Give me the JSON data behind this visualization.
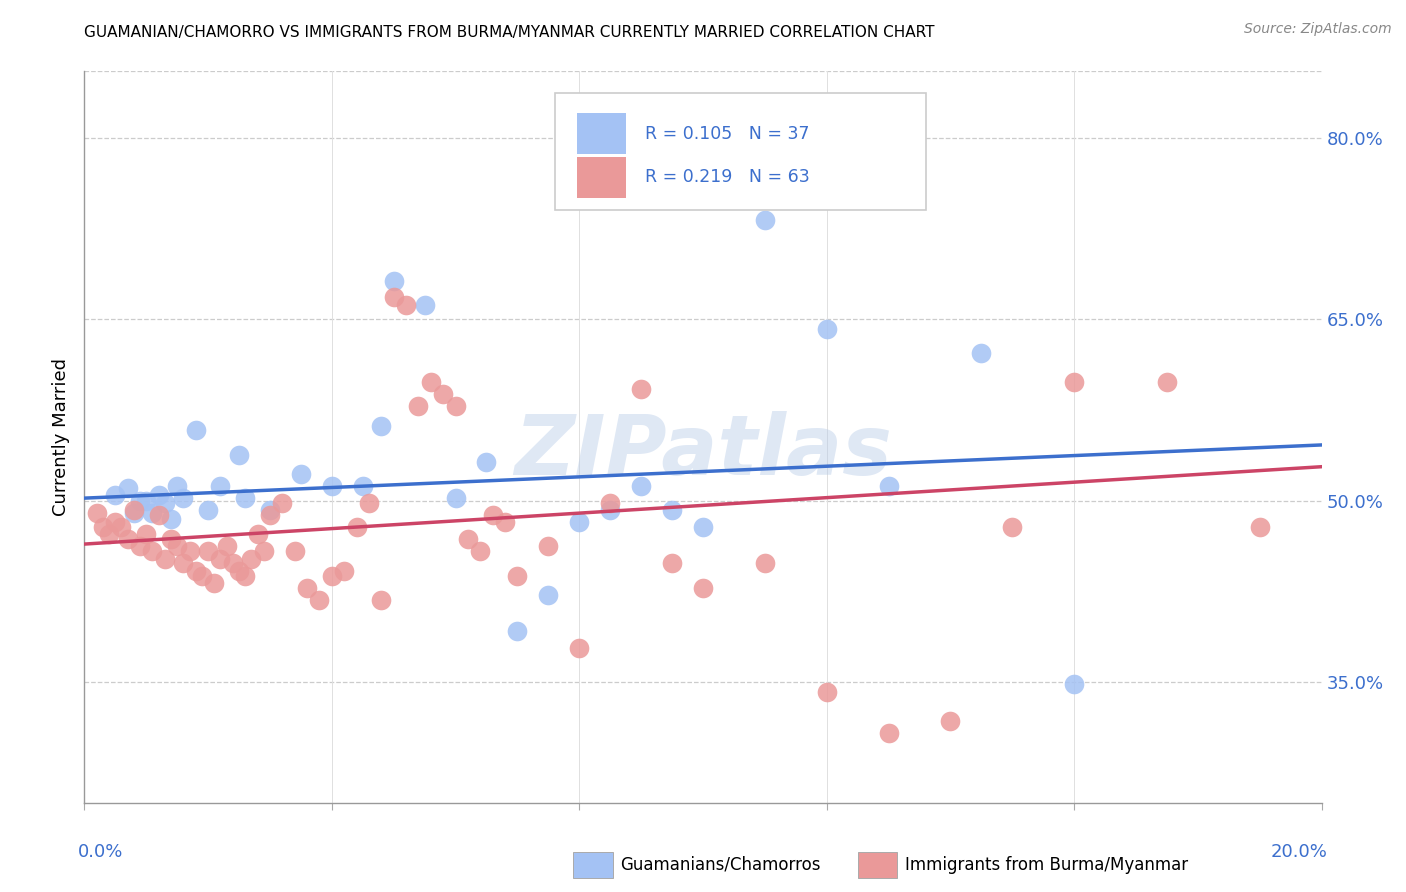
{
  "title": "GUAMANIAN/CHAMORRO VS IMMIGRANTS FROM BURMA/MYANMAR CURRENTLY MARRIED CORRELATION CHART",
  "source": "Source: ZipAtlas.com",
  "ylabel": "Currently Married",
  "right_yticks": [
    "80.0%",
    "65.0%",
    "50.0%",
    "35.0%"
  ],
  "right_ytick_vals": [
    0.8,
    0.65,
    0.5,
    0.35
  ],
  "legend_blue_r": "R = 0.105",
  "legend_blue_n": "N = 37",
  "legend_pink_r": "R = 0.219",
  "legend_pink_n": "N = 63",
  "blue_color": "#a4c2f4",
  "pink_color": "#ea9999",
  "trendline_blue": "#3c6fcd",
  "trendline_pink": "#cc4466",
  "watermark": "ZIPatlas",
  "blue_scatter": [
    [
      0.005,
      0.505
    ],
    [
      0.007,
      0.51
    ],
    [
      0.008,
      0.49
    ],
    [
      0.009,
      0.5
    ],
    [
      0.01,
      0.5
    ],
    [
      0.011,
      0.49
    ],
    [
      0.012,
      0.505
    ],
    [
      0.013,
      0.498
    ],
    [
      0.014,
      0.485
    ],
    [
      0.015,
      0.512
    ],
    [
      0.016,
      0.502
    ],
    [
      0.018,
      0.558
    ],
    [
      0.02,
      0.492
    ],
    [
      0.022,
      0.512
    ],
    [
      0.025,
      0.538
    ],
    [
      0.026,
      0.502
    ],
    [
      0.03,
      0.492
    ],
    [
      0.035,
      0.522
    ],
    [
      0.04,
      0.512
    ],
    [
      0.045,
      0.512
    ],
    [
      0.048,
      0.562
    ],
    [
      0.05,
      0.682
    ],
    [
      0.055,
      0.662
    ],
    [
      0.06,
      0.502
    ],
    [
      0.065,
      0.532
    ],
    [
      0.07,
      0.392
    ],
    [
      0.075,
      0.422
    ],
    [
      0.08,
      0.482
    ],
    [
      0.085,
      0.492
    ],
    [
      0.09,
      0.512
    ],
    [
      0.095,
      0.492
    ],
    [
      0.1,
      0.478
    ],
    [
      0.11,
      0.732
    ],
    [
      0.12,
      0.642
    ],
    [
      0.13,
      0.512
    ],
    [
      0.145,
      0.622
    ],
    [
      0.16,
      0.348
    ]
  ],
  "pink_scatter": [
    [
      0.002,
      0.49
    ],
    [
      0.003,
      0.478
    ],
    [
      0.004,
      0.472
    ],
    [
      0.005,
      0.482
    ],
    [
      0.006,
      0.478
    ],
    [
      0.007,
      0.468
    ],
    [
      0.008,
      0.492
    ],
    [
      0.009,
      0.462
    ],
    [
      0.01,
      0.472
    ],
    [
      0.011,
      0.458
    ],
    [
      0.012,
      0.488
    ],
    [
      0.013,
      0.452
    ],
    [
      0.014,
      0.468
    ],
    [
      0.015,
      0.462
    ],
    [
      0.016,
      0.448
    ],
    [
      0.017,
      0.458
    ],
    [
      0.018,
      0.442
    ],
    [
      0.019,
      0.438
    ],
    [
      0.02,
      0.458
    ],
    [
      0.021,
      0.432
    ],
    [
      0.022,
      0.452
    ],
    [
      0.023,
      0.462
    ],
    [
      0.024,
      0.448
    ],
    [
      0.025,
      0.442
    ],
    [
      0.026,
      0.438
    ],
    [
      0.027,
      0.452
    ],
    [
      0.028,
      0.472
    ],
    [
      0.029,
      0.458
    ],
    [
      0.03,
      0.488
    ],
    [
      0.032,
      0.498
    ],
    [
      0.034,
      0.458
    ],
    [
      0.036,
      0.428
    ],
    [
      0.038,
      0.418
    ],
    [
      0.04,
      0.438
    ],
    [
      0.042,
      0.442
    ],
    [
      0.044,
      0.478
    ],
    [
      0.046,
      0.498
    ],
    [
      0.048,
      0.418
    ],
    [
      0.05,
      0.668
    ],
    [
      0.052,
      0.662
    ],
    [
      0.054,
      0.578
    ],
    [
      0.056,
      0.598
    ],
    [
      0.058,
      0.588
    ],
    [
      0.06,
      0.578
    ],
    [
      0.062,
      0.468
    ],
    [
      0.064,
      0.458
    ],
    [
      0.066,
      0.488
    ],
    [
      0.068,
      0.482
    ],
    [
      0.07,
      0.438
    ],
    [
      0.075,
      0.462
    ],
    [
      0.08,
      0.378
    ],
    [
      0.085,
      0.498
    ],
    [
      0.09,
      0.592
    ],
    [
      0.095,
      0.448
    ],
    [
      0.1,
      0.428
    ],
    [
      0.11,
      0.448
    ],
    [
      0.12,
      0.342
    ],
    [
      0.13,
      0.308
    ],
    [
      0.14,
      0.318
    ],
    [
      0.15,
      0.478
    ],
    [
      0.16,
      0.598
    ],
    [
      0.175,
      0.598
    ],
    [
      0.19,
      0.478
    ]
  ],
  "blue_trend_x": [
    0.0,
    0.2
  ],
  "blue_trend_y": [
    0.502,
    0.546
  ],
  "pink_trend_x": [
    0.0,
    0.2
  ],
  "pink_trend_y": [
    0.464,
    0.528
  ],
  "xlim": [
    0.0,
    0.2
  ],
  "ylim": [
    0.25,
    0.855
  ]
}
